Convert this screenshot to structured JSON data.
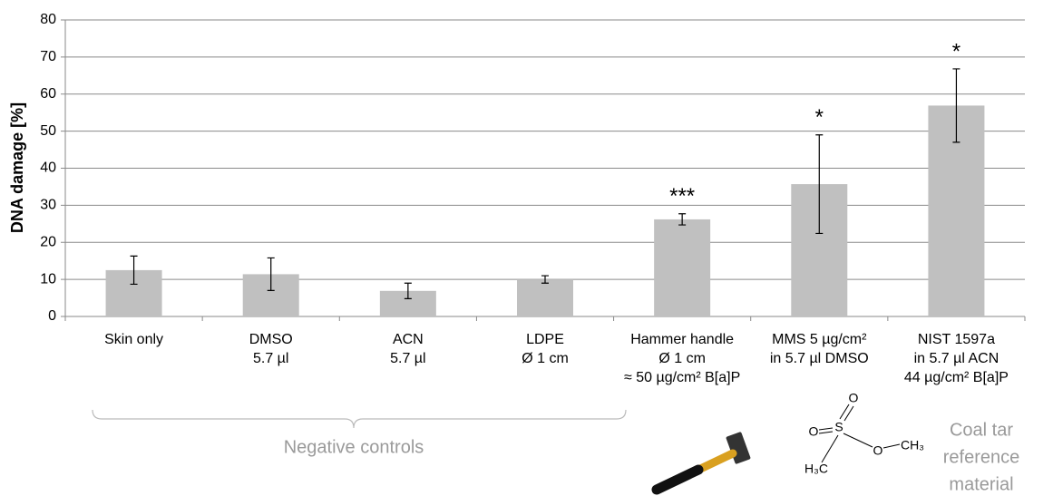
{
  "chart_data": {
    "type": "bar",
    "y_label": "DNA damage [%]",
    "categories": [
      [
        "Skin only"
      ],
      [
        "DMSO",
        "5.7 µl"
      ],
      [
        "ACN",
        "5.7 µl"
      ],
      [
        "LDPE",
        "Ø 1 cm"
      ],
      [
        "Hammer handle",
        "Ø 1 cm",
        "≈ 50 µg/cm² B[a]P"
      ],
      [
        "MMS  5 µg/cm²",
        "in 5.7 µl DMSO"
      ],
      [
        "NIST 1597a",
        "in 5.7 µl ACN",
        "44 µg/cm² B[a]P"
      ]
    ],
    "values": [
      12.5,
      11.4,
      6.9,
      10.0,
      26.2,
      35.7,
      56.9
    ],
    "errors": [
      3.8,
      4.4,
      2.1,
      1.0,
      1.5,
      13.3,
      9.9
    ],
    "significance": [
      null,
      null,
      null,
      null,
      "***",
      "*",
      "*"
    ],
    "color": "#c0c0c0",
    "ylim": [
      0,
      80
    ],
    "yticks": [
      0,
      10,
      20,
      30,
      40,
      50,
      60,
      70,
      80
    ],
    "grid": true,
    "annotations": {
      "negative_controls": "Negative controls",
      "coal_tar": [
        "Coal tar",
        "reference",
        "material"
      ]
    },
    "structure_labels": [
      "O",
      "O",
      "S",
      "O",
      "CH₃",
      "H₃C"
    ]
  }
}
